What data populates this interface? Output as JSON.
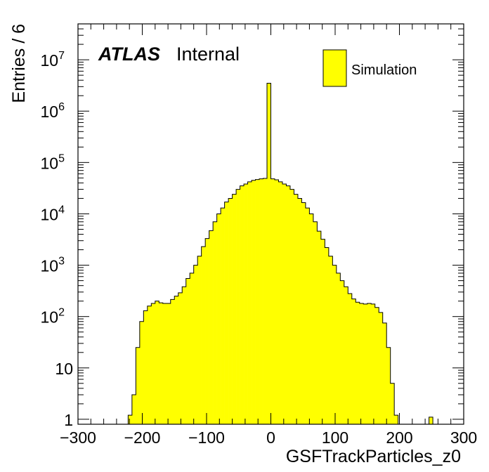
{
  "chart_data": {
    "type": "bar",
    "subtype": "histogram",
    "xlabel": "GSFTrackParticles_z0",
    "ylabel": "Entries / 6",
    "bin_width": 6,
    "xlim": [
      -300,
      300
    ],
    "ylim": [
      0.8,
      50000000
    ],
    "ylog": true,
    "grid": false,
    "x_ticks": [
      "−300",
      "−200",
      "−100",
      "0",
      "100",
      "200",
      "300"
    ],
    "x_tick_values": [
      -300,
      -200,
      -100,
      0,
      100,
      200,
      300
    ],
    "y_ticks": [
      {
        "value": 1,
        "base": "1",
        "exp": ""
      },
      {
        "value": 10,
        "base": "10",
        "exp": ""
      },
      {
        "value": 100,
        "base": "10",
        "exp": "2"
      },
      {
        "value": 1000,
        "base": "10",
        "exp": "3"
      },
      {
        "value": 10000,
        "base": "10",
        "exp": "4"
      },
      {
        "value": 100000,
        "base": "10",
        "exp": "5"
      },
      {
        "value": 1000000,
        "base": "10",
        "exp": "6"
      },
      {
        "value": 10000000,
        "base": "10",
        "exp": "7"
      }
    ],
    "legend_position": "top-right",
    "fill_color": "#ffff00",
    "line_color": "#000000",
    "series": [
      {
        "name": "Simulation",
        "bins_low_edges": [
          -222,
          -216,
          -210,
          -204,
          -198,
          -192,
          -186,
          -180,
          -174,
          -168,
          -162,
          -156,
          -150,
          -144,
          -138,
          -132,
          -126,
          -120,
          -114,
          -108,
          -102,
          -96,
          -90,
          -84,
          -78,
          -72,
          -66,
          -60,
          -54,
          -48,
          -42,
          -36,
          -30,
          -24,
          -18,
          -12,
          -6,
          0,
          6,
          12,
          18,
          24,
          30,
          36,
          42,
          48,
          54,
          60,
          66,
          72,
          78,
          84,
          90,
          96,
          102,
          108,
          114,
          120,
          126,
          132,
          138,
          144,
          150,
          156,
          162,
          168,
          174,
          180,
          186,
          192,
          198,
          204,
          246
        ],
        "values": [
          1.2,
          3,
          25,
          80,
          130,
          160,
          180,
          200,
          185,
          180,
          180,
          215,
          250,
          290,
          380,
          550,
          700,
          1000,
          1500,
          2300,
          3300,
          4700,
          7000,
          10000,
          13000,
          17000,
          20000,
          24000,
          30000,
          35000,
          38000,
          42000,
          45000,
          46500,
          48000,
          49000,
          3500000,
          48000,
          46000,
          42000,
          38000,
          35000,
          30000,
          24000,
          20000,
          16500,
          13000,
          10000,
          7000,
          4600,
          3200,
          2200,
          1500,
          1000,
          700,
          500,
          380,
          280,
          220,
          190,
          180,
          175,
          180,
          175,
          150,
          120,
          75,
          25,
          5,
          1.2,
          0,
          0,
          1.1
        ]
      }
    ]
  },
  "annotations": {
    "atlas": "ATLAS",
    "internal": "Internal"
  }
}
